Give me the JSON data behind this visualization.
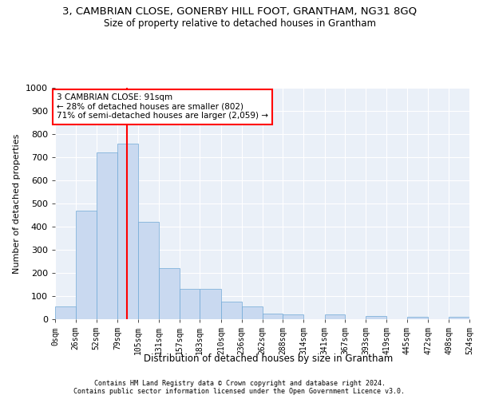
{
  "title_line1": "3, CAMBRIAN CLOSE, GONERBY HILL FOOT, GRANTHAM, NG31 8GQ",
  "title_line2": "Size of property relative to detached houses in Grantham",
  "xlabel": "Distribution of detached houses by size in Grantham",
  "ylabel": "Number of detached properties",
  "property_size": 91,
  "bin_edges": [
    0,
    26,
    52,
    79,
    105,
    131,
    157,
    183,
    210,
    236,
    262,
    288,
    314,
    341,
    367,
    393,
    419,
    445,
    472,
    498,
    524
  ],
  "bin_labels": [
    "0sqm",
    "26sqm",
    "52sqm",
    "79sqm",
    "105sqm",
    "131sqm",
    "157sqm",
    "183sqm",
    "210sqm",
    "236sqm",
    "262sqm",
    "288sqm",
    "314sqm",
    "341sqm",
    "367sqm",
    "393sqm",
    "419sqm",
    "445sqm",
    "472sqm",
    "498sqm",
    "524sqm"
  ],
  "bar_heights": [
    55,
    470,
    720,
    760,
    420,
    220,
    130,
    130,
    75,
    55,
    25,
    20,
    0,
    20,
    0,
    15,
    0,
    10,
    0,
    10
  ],
  "bar_color": "#c9d9f0",
  "bar_edgecolor": "#6fa8d6",
  "vline_x": 91,
  "vline_color": "red",
  "annotation_text": "3 CAMBRIAN CLOSE: 91sqm\n← 28% of detached houses are smaller (802)\n71% of semi-detached houses are larger (2,059) →",
  "annotation_box_color": "white",
  "annotation_box_edgecolor": "red",
  "ylim": [
    0,
    1000
  ],
  "yticks": [
    0,
    100,
    200,
    300,
    400,
    500,
    600,
    700,
    800,
    900,
    1000
  ],
  "bg_color": "#eaf0f8",
  "footer_line1": "Contains HM Land Registry data © Crown copyright and database right 2024.",
  "footer_line2": "Contains public sector information licensed under the Open Government Licence v3.0."
}
